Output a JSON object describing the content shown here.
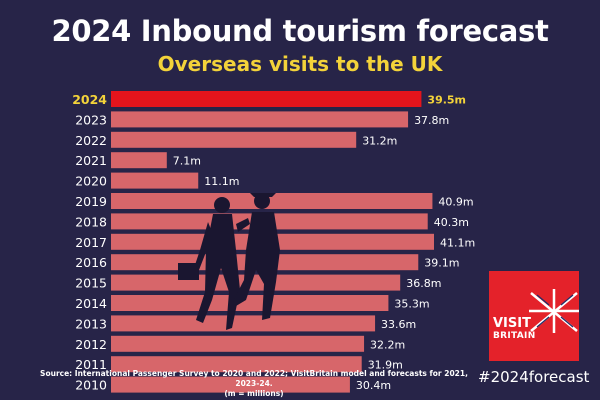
{
  "chart_data": {
    "type": "bar",
    "orientation": "horizontal",
    "title": "2024 Inbound tourism forecast",
    "subtitle": "Overseas visits to the UK",
    "categories": [
      "2024",
      "2023",
      "2022",
      "2021",
      "2020",
      "2019",
      "2018",
      "2017",
      "2016",
      "2015",
      "2014",
      "2013",
      "2012",
      "2011",
      "2010"
    ],
    "values": [
      39.5,
      37.8,
      31.2,
      7.1,
      11.1,
      40.9,
      40.3,
      41.1,
      39.1,
      36.8,
      35.3,
      33.6,
      32.2,
      31.9,
      30.4
    ],
    "value_labels": [
      "39.5m",
      "37.8m",
      "31.2m",
      "7.1m",
      "11.1m",
      "40.9m",
      "40.3m",
      "41.1m",
      "39.1m",
      "36.8m",
      "35.3m",
      "33.6m",
      "32.2m",
      "31.9m",
      "30.4m"
    ],
    "highlight_category": "2024",
    "xlim": [
      0,
      41.1
    ],
    "colors": {
      "bar": "#d7666a",
      "highlight_bar": "#e4141c",
      "highlight_text": "#f3d33a",
      "background": "#272448"
    }
  },
  "source_note": [
    "Source: International Passenger Survey to 2020 and 2022; VisitBritain model and forecasts for 2021, 2023-24.",
    "(m = millions)"
  ],
  "logo": {
    "line1": "VISIT",
    "line2": "BRITAIN"
  },
  "hashtag": "#2024forecast"
}
